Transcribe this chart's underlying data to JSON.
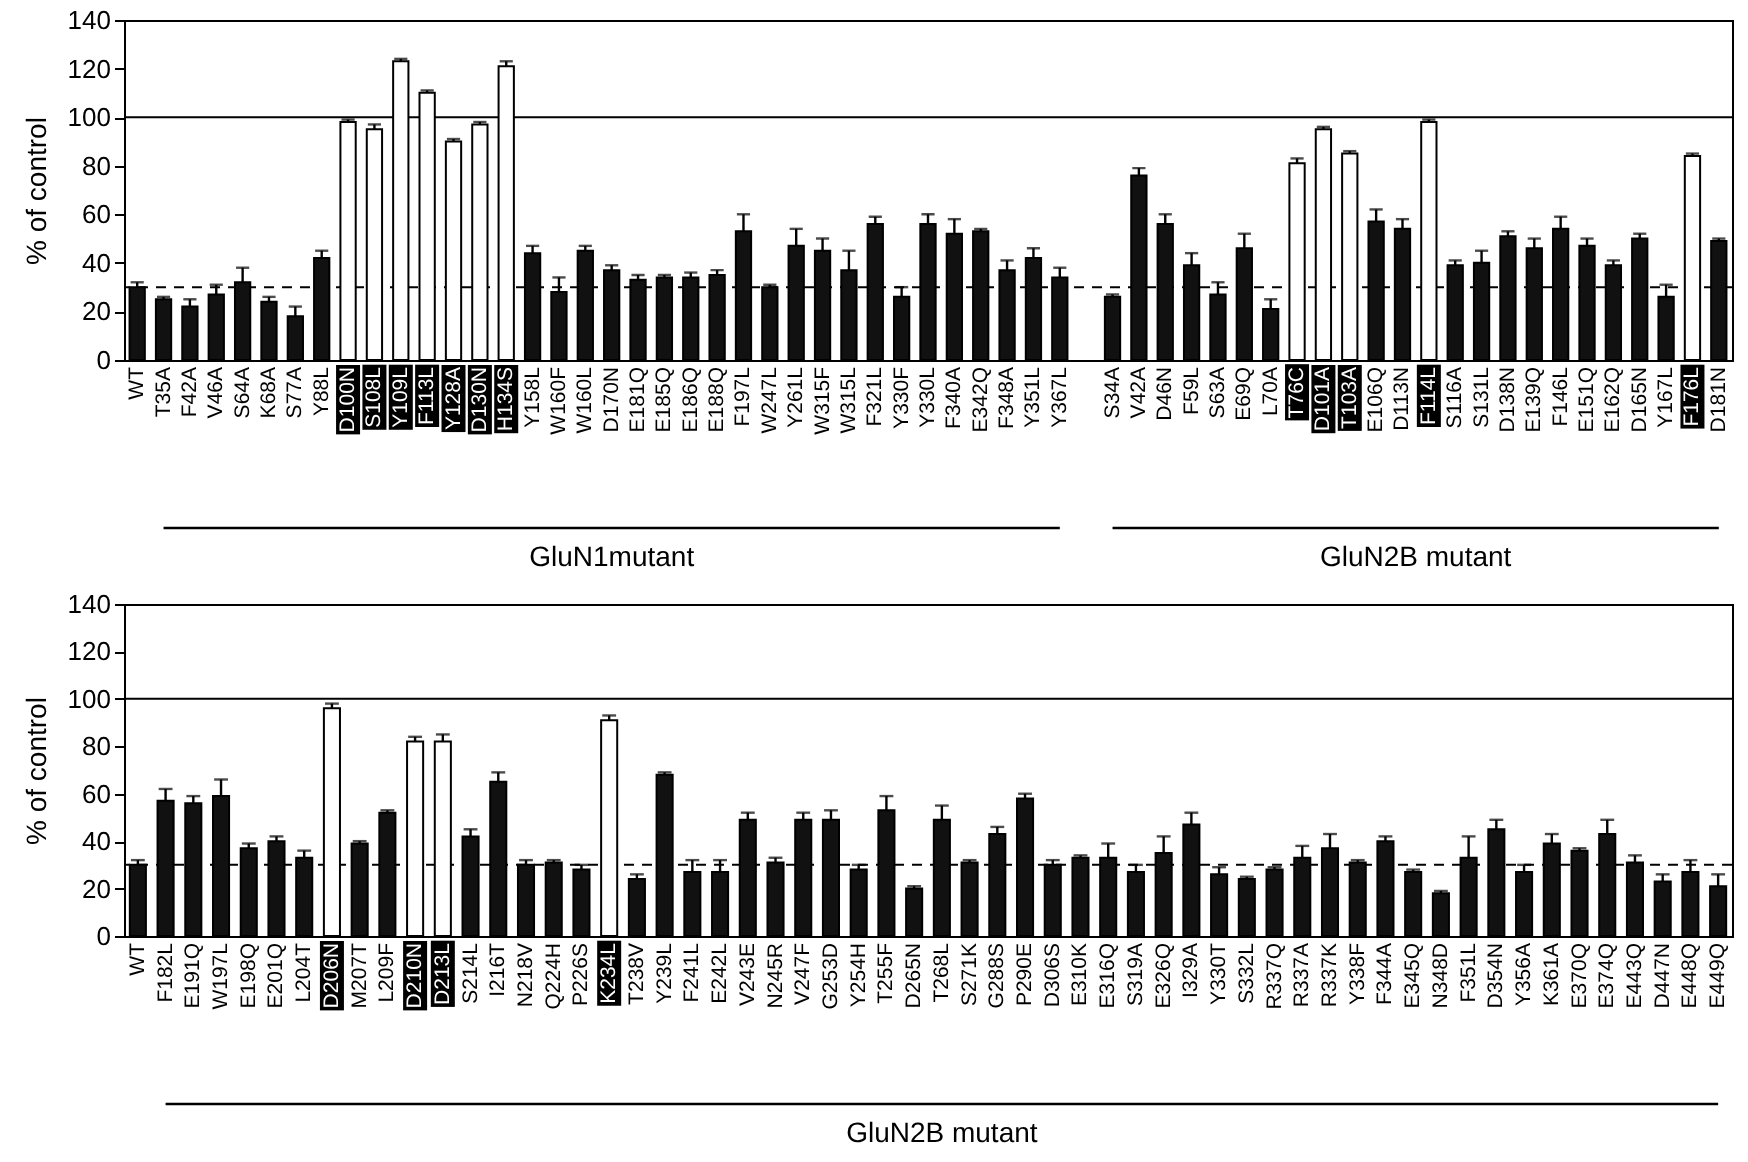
{
  "chart_data": [
    {
      "type": "bar",
      "ylabel": "% of control",
      "categories": [
        "WT",
        "T35A",
        "F42A",
        "V46A",
        "S64A",
        "K68A",
        "S77A",
        "Y88L",
        "D100N",
        "S108L",
        "Y109L",
        "F113L",
        "Y128A",
        "D130N",
        "H134S",
        "Y158L",
        "W160F",
        "W160L",
        "D170N",
        "E181Q",
        "E185Q",
        "E186Q",
        "E188Q",
        "F197L",
        "W247L",
        "Y261L",
        "W315F",
        "W315L",
        "F321L",
        "Y330F",
        "Y330L",
        "F340A",
        "E342Q",
        "F348A",
        "Y351L",
        "Y367L",
        null,
        "S34A",
        "V42A",
        "D46N",
        "F59L",
        "S63A",
        "E69Q",
        "L70A",
        "T76C",
        "D101A",
        "T103A",
        "E106Q",
        "D113N",
        "F114L",
        "S116A",
        "S131L",
        "D138N",
        "E139Q",
        "F146L",
        "E151Q",
        "E162Q",
        "D165N",
        "Y167L",
        "F176L",
        "D181N"
      ],
      "values": [
        30,
        25,
        22,
        27,
        32,
        24,
        18,
        42,
        98,
        95,
        123,
        110,
        90,
        97,
        121,
        44,
        28,
        45,
        37,
        33,
        34,
        34,
        35,
        53,
        30,
        47,
        45,
        37,
        56,
        26,
        56,
        52,
        53,
        37,
        42,
        34,
        null,
        26,
        76,
        56,
        39,
        27,
        46,
        21,
        81,
        95,
        85,
        57,
        54,
        98,
        39,
        40,
        51,
        46,
        54,
        47,
        39,
        50,
        26,
        84,
        49
      ],
      "errors": [
        [
          30,
          32
        ],
        [
          25,
          26
        ],
        [
          22,
          25
        ],
        [
          27,
          31
        ],
        [
          32,
          38
        ],
        [
          24,
          26
        ],
        [
          18,
          22
        ],
        [
          42,
          45
        ],
        [
          98,
          99
        ],
        [
          95,
          97
        ],
        [
          123,
          124
        ],
        [
          110,
          111
        ],
        [
          90,
          91
        ],
        [
          97,
          98
        ],
        [
          121,
          123
        ],
        [
          44,
          47
        ],
        [
          28,
          34
        ],
        [
          45,
          47
        ],
        [
          37,
          39
        ],
        [
          33,
          35
        ],
        [
          34,
          35
        ],
        [
          34,
          36
        ],
        [
          35,
          37
        ],
        [
          53,
          60
        ],
        [
          30,
          31
        ],
        [
          47,
          54
        ],
        [
          45,
          50
        ],
        [
          37,
          45
        ],
        [
          56,
          59
        ],
        [
          26,
          30
        ],
        [
          56,
          60
        ],
        [
          52,
          58
        ],
        [
          53,
          54
        ],
        [
          37,
          41
        ],
        [
          42,
          46
        ],
        [
          34,
          38
        ],
        null,
        [
          26,
          27
        ],
        [
          76,
          79
        ],
        [
          56,
          60
        ],
        [
          39,
          44
        ],
        [
          27,
          32
        ],
        [
          46,
          52
        ],
        [
          21,
          25
        ],
        [
          81,
          83
        ],
        [
          95,
          96
        ],
        [
          85,
          86
        ],
        [
          57,
          62
        ],
        [
          54,
          58
        ],
        [
          98,
          99
        ],
        [
          39,
          41
        ],
        [
          40,
          45
        ],
        [
          51,
          53
        ],
        [
          46,
          50
        ],
        [
          54,
          59
        ],
        [
          47,
          50
        ],
        [
          39,
          41
        ],
        [
          50,
          52
        ],
        [
          26,
          31
        ],
        [
          84,
          85
        ],
        [
          49,
          50
        ]
      ],
      "colors": [
        "#111111",
        "#111111",
        "#111111",
        "#111111",
        "#111111",
        "#111111",
        "#111111",
        "#111111",
        "#ffffff",
        "#ffffff",
        "#ffffff",
        "#ffffff",
        "#ffffff",
        "#ffffff",
        "#ffffff",
        "#111111",
        "#111111",
        "#111111",
        "#111111",
        "#111111",
        "#111111",
        "#111111",
        "#111111",
        "#111111",
        "#111111",
        "#111111",
        "#111111",
        "#111111",
        "#111111",
        "#111111",
        "#111111",
        "#111111",
        "#111111",
        "#111111",
        "#111111",
        "#111111",
        null,
        "#111111",
        "#111111",
        "#111111",
        "#111111",
        "#111111",
        "#111111",
        "#111111",
        "#ffffff",
        "#ffffff",
        "#ffffff",
        "#111111",
        "#111111",
        "#ffffff",
        "#111111",
        "#111111",
        "#111111",
        "#111111",
        "#111111",
        "#111111",
        "#111111",
        "#111111",
        "#111111",
        "#ffffff",
        "#111111"
      ],
      "ylim": [
        0,
        140
      ],
      "yticks": [
        0,
        20,
        40,
        60,
        80,
        100,
        120,
        140
      ],
      "ref_lines": [
        {
          "axis": "y",
          "value": 100,
          "line_style": "solid",
          "color": "#000000"
        },
        {
          "axis": "y",
          "value": 30,
          "line_style": "dashed",
          "color": "#000000"
        }
      ],
      "annotations": [
        "GluN1mutant",
        "GluN2B mutant"
      ]
    },
    {
      "type": "bar",
      "ylabel": "% of control",
      "categories": [
        "WT",
        "F182L",
        "E191Q",
        "W197L",
        "E198Q",
        "E201Q",
        "L204T",
        "D206N",
        "M207T",
        "L209F",
        "D210N",
        "D213L",
        "S214L",
        "I216T",
        "N218V",
        "Q224H",
        "P226S",
        "K234L",
        "T238V",
        "Y239L",
        "F241L",
        "E242L",
        "V243E",
        "N245R",
        "V247F",
        "G253D",
        "Y254H",
        "T255F",
        "D265N",
        "T268L",
        "S271K",
        "G288S",
        "P290E",
        "D306S",
        "E310K",
        "E316Q",
        "S319A",
        "E326Q",
        "I329A",
        "Y330T",
        "S332L",
        "R337Q",
        "R337A",
        "R337K",
        "Y338F",
        "F344A",
        "E345Q",
        "N348D",
        "F351L",
        "D354N",
        "Y356A",
        "K361A",
        "E370Q",
        "E374Q",
        "E443Q",
        "D447N",
        "E448Q",
        "E449Q"
      ],
      "values": [
        30,
        57,
        56,
        59,
        37,
        40,
        33,
        96,
        39,
        52,
        82,
        82,
        42,
        65,
        30,
        31,
        28,
        91,
        24,
        68,
        27,
        27,
        49,
        31,
        49,
        49,
        28,
        53,
        20,
        49,
        31,
        43,
        58,
        30,
        33,
        33,
        27,
        35,
        47,
        26,
        24,
        28,
        33,
        37,
        31,
        40,
        27,
        18,
        33,
        45,
        27,
        39,
        36,
        43,
        31,
        23,
        27,
        21
      ],
      "errors": [
        [
          30,
          32
        ],
        [
          57,
          62
        ],
        [
          56,
          59
        ],
        [
          59,
          66
        ],
        [
          37,
          39
        ],
        [
          40,
          42
        ],
        [
          33,
          36
        ],
        [
          96,
          98
        ],
        [
          39,
          40
        ],
        [
          52,
          53
        ],
        [
          82,
          84
        ],
        [
          82,
          85
        ],
        [
          42,
          45
        ],
        [
          65,
          69
        ],
        [
          30,
          32
        ],
        [
          31,
          32
        ],
        [
          28,
          30
        ],
        [
          91,
          93
        ],
        [
          24,
          26
        ],
        [
          68,
          69
        ],
        [
          27,
          32
        ],
        [
          27,
          32
        ],
        [
          49,
          52
        ],
        [
          31,
          33
        ],
        [
          49,
          52
        ],
        [
          49,
          53
        ],
        [
          28,
          30
        ],
        [
          53,
          59
        ],
        [
          20,
          21
        ],
        [
          49,
          55
        ],
        [
          31,
          32
        ],
        [
          43,
          46
        ],
        [
          58,
          60
        ],
        [
          30,
          32
        ],
        [
          33,
          34
        ],
        [
          33,
          39
        ],
        [
          27,
          30
        ],
        [
          35,
          42
        ],
        [
          47,
          52
        ],
        [
          26,
          29
        ],
        [
          24,
          25
        ],
        [
          28,
          29
        ],
        [
          33,
          38
        ],
        [
          37,
          43
        ],
        [
          31,
          32
        ],
        [
          40,
          42
        ],
        [
          27,
          28
        ],
        [
          18,
          19
        ],
        [
          33,
          42
        ],
        [
          45,
          49
        ],
        [
          27,
          30
        ],
        [
          39,
          43
        ],
        [
          36,
          37
        ],
        [
          43,
          49
        ],
        [
          31,
          34
        ],
        [
          23,
          26
        ],
        [
          27,
          32
        ],
        [
          21,
          26
        ]
      ],
      "colors": [
        "#111111",
        "#111111",
        "#111111",
        "#111111",
        "#111111",
        "#111111",
        "#111111",
        "#ffffff",
        "#111111",
        "#111111",
        "#ffffff",
        "#ffffff",
        "#111111",
        "#111111",
        "#111111",
        "#111111",
        "#111111",
        "#ffffff",
        "#111111",
        "#111111",
        "#111111",
        "#111111",
        "#111111",
        "#111111",
        "#111111",
        "#111111",
        "#111111",
        "#111111",
        "#111111",
        "#111111",
        "#111111",
        "#111111",
        "#111111",
        "#111111",
        "#111111",
        "#111111",
        "#111111",
        "#111111",
        "#111111",
        "#111111",
        "#111111",
        "#111111",
        "#111111",
        "#111111",
        "#111111",
        "#111111",
        "#111111",
        "#111111",
        "#111111",
        "#111111",
        "#111111",
        "#111111",
        "#111111",
        "#111111",
        "#111111",
        "#111111",
        "#111111",
        "#111111"
      ],
      "ylim": [
        0,
        140
      ],
      "yticks": [
        0,
        20,
        40,
        60,
        80,
        100,
        120,
        140
      ],
      "ref_lines": [
        {
          "axis": "y",
          "value": 100,
          "line_style": "solid",
          "color": "#000000"
        },
        {
          "axis": "y",
          "value": 30,
          "line_style": "dashed",
          "color": "#000000"
        }
      ],
      "annotations": [
        "GluN2B mutant"
      ]
    }
  ]
}
